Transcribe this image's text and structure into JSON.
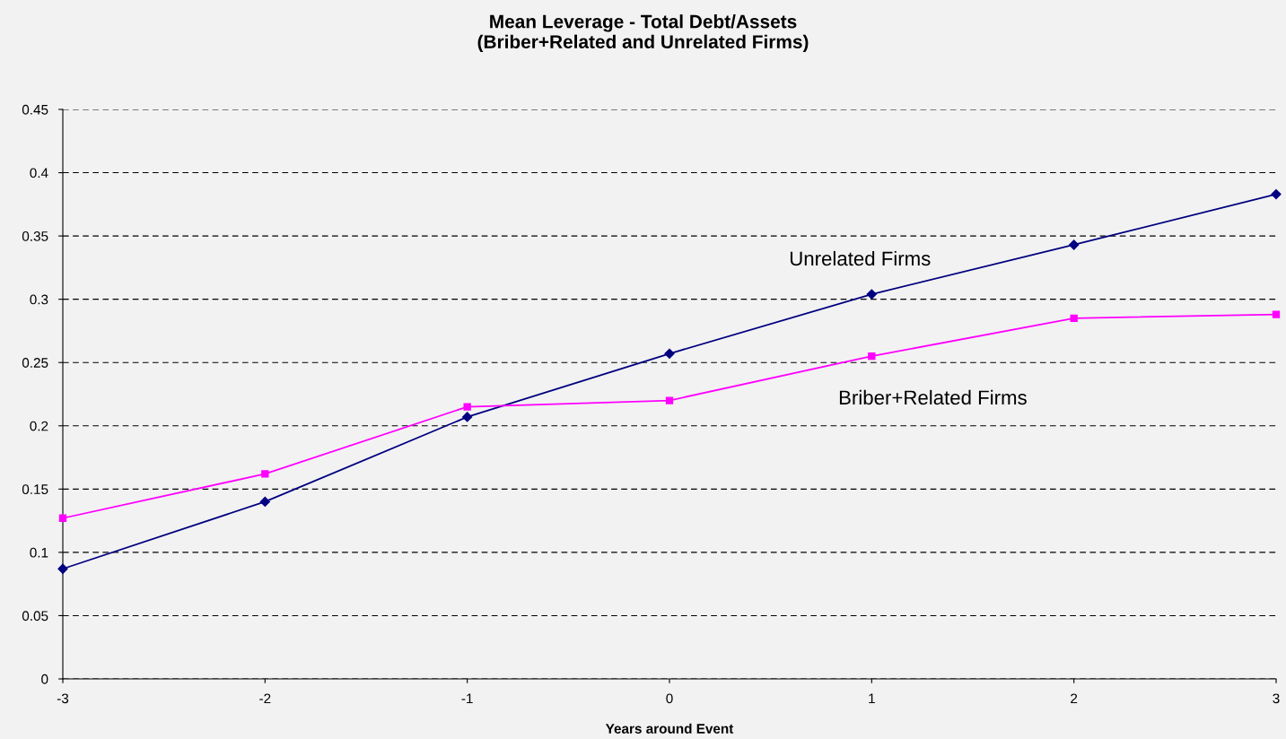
{
  "chart_data": {
    "type": "line",
    "title": "Mean Leverage - Total Debt/Assets\n(Briber+Related and Unrelated Firms)",
    "xlabel": "Years around Event",
    "x": [
      -3,
      -2,
      -1,
      0,
      1,
      2,
      3
    ],
    "series": [
      {
        "name": "Unrelated Firms",
        "color": "#000080",
        "marker": "diamond",
        "values": [
          0.087,
          0.14,
          0.207,
          0.257,
          0.304,
          0.343,
          0.383
        ]
      },
      {
        "name": "Briber+Related Firms",
        "color": "#ff00ff",
        "marker": "square",
        "values": [
          0.127,
          0.162,
          0.215,
          0.22,
          0.255,
          0.285,
          0.288
        ]
      }
    ],
    "xlim": [
      -3,
      3
    ],
    "xticks": [
      -3,
      -2,
      -1,
      0,
      1,
      2,
      3
    ],
    "ylim": [
      0,
      0.45
    ],
    "yticks": [
      0,
      0.05,
      0.1,
      0.15,
      0.2,
      0.25,
      0.3,
      0.35,
      0.4,
      0.45
    ],
    "grid": "y",
    "line_style": "solid"
  }
}
